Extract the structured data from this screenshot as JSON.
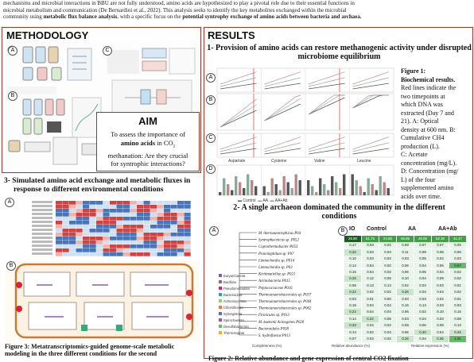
{
  "intro": {
    "line1": "mechanisms and microbial interactions in BBU are not fully understood, amino acids are hypothesized to play a pivotal role due to their essential functions in",
    "line2": "microbial metabolism and communication (De Bernardini et al., 2022). This analysis seeks to identify the key metabolites exchanged within the microbial",
    "line3a": "community using ",
    "line3b": "metabolic flux balance analysis",
    "line3c": ", with a specific focus on the ",
    "line3d": "potential syntrophy exchange of amino acids between bacteria and archaea."
  },
  "methodology": {
    "title": "METHODOLOGY",
    "labels": {
      "a": "A",
      "b": "B",
      "c": "C"
    }
  },
  "aim": {
    "title": "AIM",
    "line1": "To assess the importance of",
    "line2a": "amino acids",
    "line2b": " in CO",
    "line3": "methanation: Are they crucial",
    "line4": "for syntrophic interactions?"
  },
  "section3": {
    "title_line1": "3- Simulated amino acid exchange and metabolic fluxes in",
    "title_line2": "response to different environmental conditions",
    "caption_line1": "Figure 3: Metatranscriptomics-guided genome-scale metabolic",
    "caption_line2": "modeling in the three different conditions for the second",
    "tag_a": "A",
    "tag_b": "B"
  },
  "results": {
    "title": "RESULTS",
    "sub1_line1": "1- Provision of amino acids can restore methanogenic activity under disrupted",
    "sub1_line2": "microbiome equilibrium",
    "fig1": {
      "title": "Figure 1:",
      "title2": "Biochemical results.",
      "lines": [
        "Red lines indicate the",
        "two timepoints at",
        "which DNA was",
        "extracted (Day 7 and",
        "21). A: Optical",
        "density at 600 nm. B:",
        "Cumulative CH4",
        "production (L).",
        "C: Acetate",
        "concentration (mg/L).",
        "D: Concentration (mg/",
        "L) of the four",
        "supplemented amino",
        "acids over time."
      ]
    },
    "fig1_tags": {
      "a": "A",
      "b": "B",
      "c": "C",
      "d": "D"
    },
    "fig1_xticks": [
      "Aspartate",
      "Cysteine",
      "Valine",
      "Leucine"
    ],
    "fig1_legend": [
      "Control",
      "AA",
      "AA+Ab"
    ],
    "sub2_line1": "2- A single archaeon dominated the community in the different",
    "sub2_line2": "conditions",
    "fig2_tags": {
      "a": "A",
      "b": "B"
    },
    "heat_header": [
      "IO",
      "Control",
      "AA",
      "AA+Ab"
    ],
    "species": [
      "M. thermautotrophicus P04",
      "Syntrophaceticus sp. P052",
      "Coprothermobacter P053",
      "Proteiniphilum sp. P07",
      "Limnochordia sp. P014",
      "Limnochordia sp. P03",
      "Kiritimatiellae sp. P021",
      "Actinobacteria P015",
      "Peptococcaceae P016",
      "Thermoanaerobacterales sp. P037",
      "Thermoanaerobacterales sp. P044",
      "Thermoanaerobacterales sp. P062",
      "Firmicutes sp. P013",
      "M. kuenenii Acinogenes P020",
      "Bacteroidales P058",
      "S. hydrofluvius P013"
    ],
    "phyla": [
      "Euryarchaeota",
      "Bacillota",
      "Pseudomonadota",
      "Bacteroidota",
      "Actinomycetota",
      "Chloroflexota",
      "Synergistota",
      "Spirochaetota",
      "Desulfobacterota",
      "Thermotogota"
    ],
    "heat_values": [
      [
        "26.80",
        "51.75",
        "24.86",
        "66.85",
        "45.85",
        "52.30",
        "41.47"
      ],
      [
        "0.17",
        "0.03",
        "0.02",
        "0.08",
        "0.07",
        "0.07",
        "0.05"
      ],
      [
        "0.20",
        "0.03",
        "0.03",
        "0.11",
        "0.09",
        "0.08",
        "0.06"
      ],
      [
        "0.10",
        "0.03",
        "0.02",
        "0.03",
        "0.05",
        "0.04",
        "0.03"
      ],
      [
        "0.14",
        "0.04",
        "0.02",
        "0.06",
        "0.04",
        "0.06",
        "0.67"
      ],
      [
        "0.15",
        "0.04",
        "0.02",
        "0.06",
        "0.05",
        "0.04",
        "0.02"
      ],
      [
        "0.26",
        "0.12",
        "0.05",
        "0.10",
        "0.04",
        "0.09",
        "0.02"
      ],
      [
        "0.08",
        "0.13",
        "0.14",
        "0.02",
        "0.04",
        "0.03",
        "0.01"
      ],
      [
        "0.22",
        "0.02",
        "0.02",
        "0.26",
        "0.03",
        "0.04",
        "0.02"
      ],
      [
        "0.03",
        "0.01",
        "0.00",
        "0.03",
        "0.03",
        "0.02",
        "0.01"
      ],
      [
        "0.18",
        "0.04",
        "0.04",
        "0.16",
        "0.13",
        "0.03",
        "0.03"
      ],
      [
        "0.22",
        "0.04",
        "0.04",
        "0.06",
        "0.02",
        "0.10",
        "0.16"
      ],
      [
        "0.14",
        "0.22",
        "0.05",
        "0.03",
        "0.04",
        "0.03",
        "0.08"
      ],
      [
        "0.33",
        "0.04",
        "0.02",
        "0.08",
        "0.06",
        "0.08",
        "0.13"
      ],
      [
        "0.13",
        "0.02",
        "0.04",
        "0.06",
        "0.20",
        "0.04",
        "0.25"
      ],
      [
        "0.07",
        "0.03",
        "0.02",
        "0.26",
        "0.04",
        "0.36",
        "1.01"
      ]
    ],
    "legend_labels": [
      "Completeness (%)",
      "Relative abundance (%)",
      "Relative expression (%)"
    ],
    "caption2": "Figure 2: Relative abundance and gene expression of central CO2 fixation"
  },
  "colors": {
    "accent": "#a93226",
    "heat_dark": "#2e7d32",
    "heat_light": "#e8f5e9"
  }
}
